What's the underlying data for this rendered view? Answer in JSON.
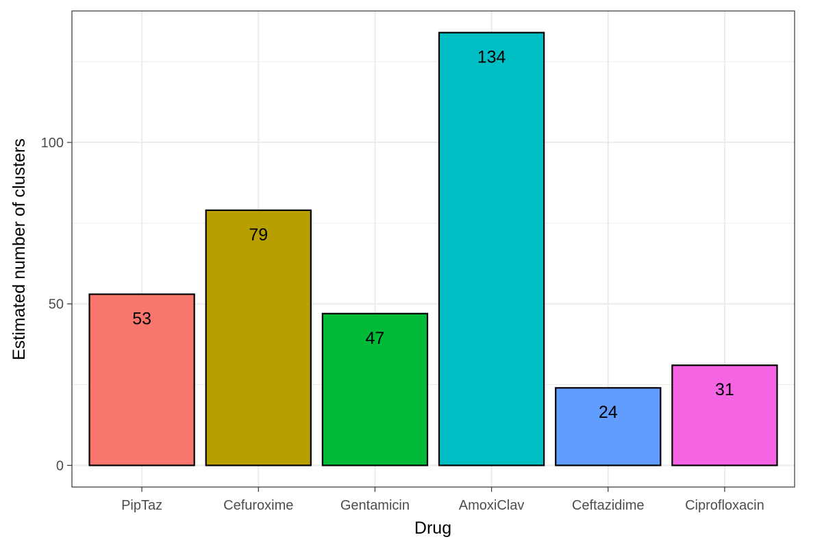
{
  "chart_data": {
    "type": "bar",
    "title": "",
    "xlabel": "Drug",
    "ylabel": "Estimated number of clusters",
    "categories": [
      "PipTaz",
      "Cefuroxime",
      "Gentamicin",
      "AmoxiClav",
      "Ceftazidime",
      "Ciprofloxacin"
    ],
    "values": [
      53,
      79,
      47,
      134,
      24,
      31
    ],
    "value_labels": [
      "53",
      "79",
      "47",
      "134",
      "24",
      "31"
    ],
    "colors": [
      "#F8766D",
      "#B79F00",
      "#00BA38",
      "#00BFC4",
      "#619CFF",
      "#F564E3"
    ],
    "yticks": [
      0,
      50,
      100
    ],
    "ytick_labels": [
      "0",
      "50",
      "100"
    ],
    "ylim": [
      -6.7,
      140.7
    ],
    "grid": true,
    "legend": "none"
  }
}
